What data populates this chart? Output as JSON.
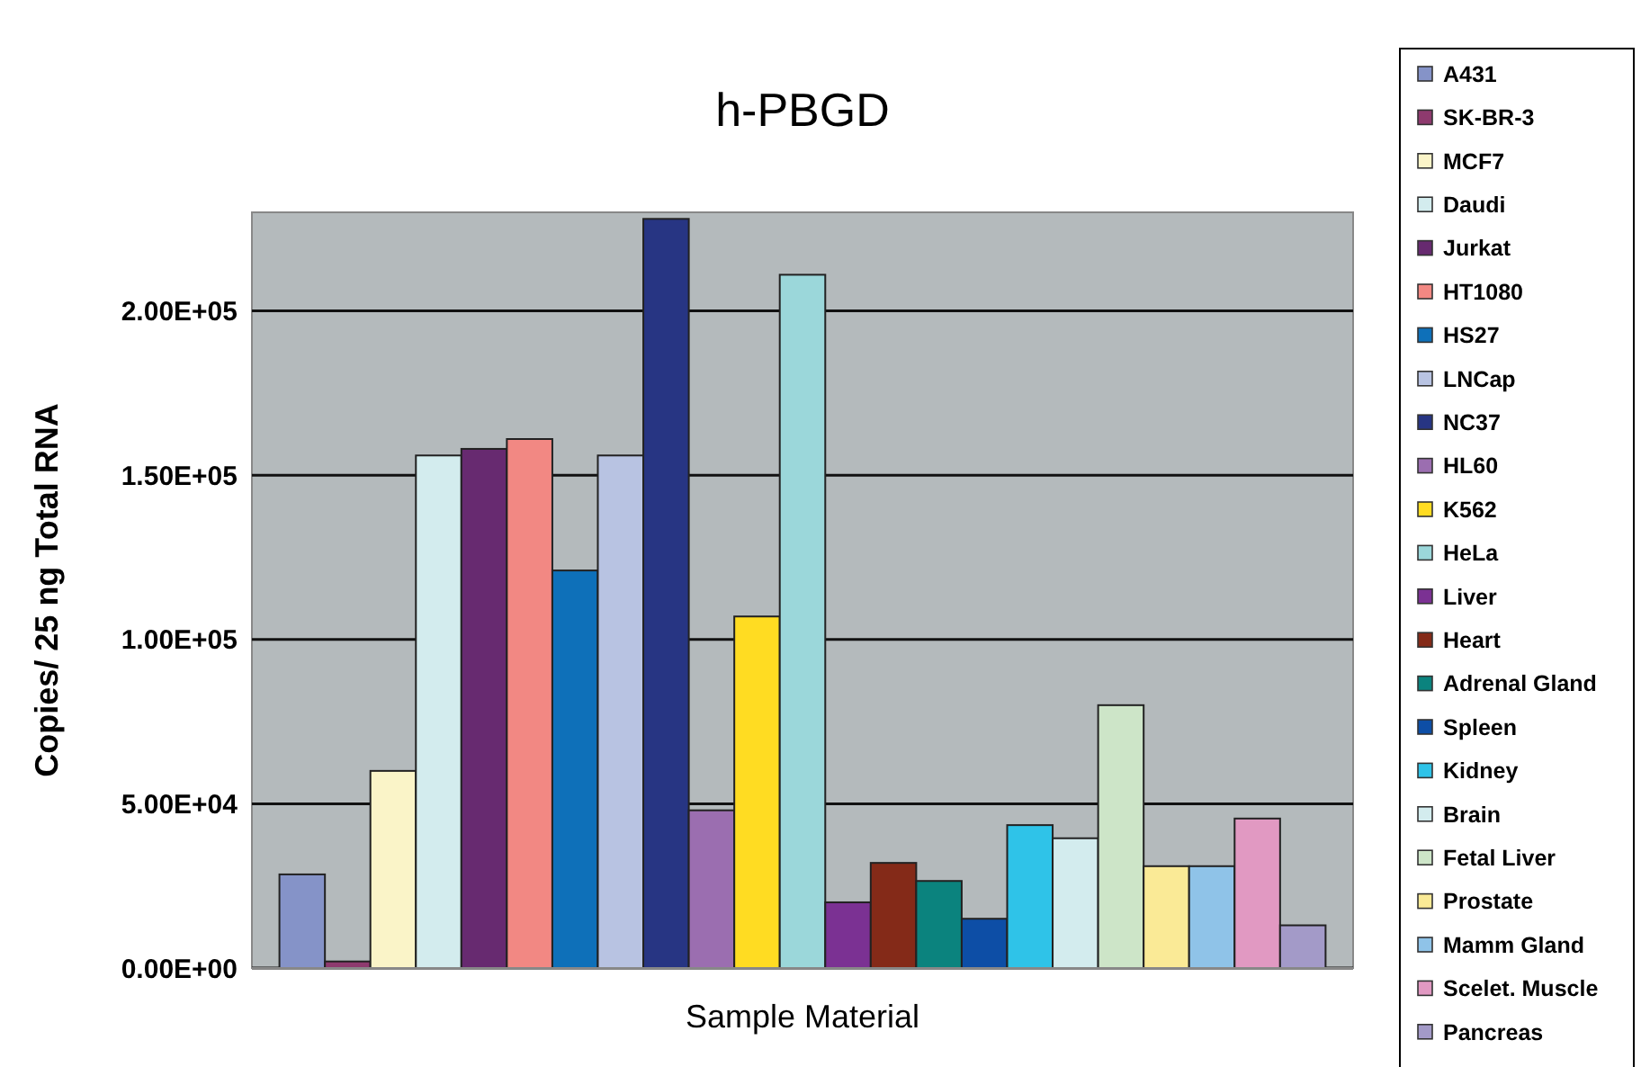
{
  "chart_data": {
    "type": "bar",
    "title": "h-PBGD",
    "xlabel": "Sample Material",
    "ylabel": "Copies/ 25 ng Total RNA",
    "categories": [
      null
    ],
    "series": [
      {
        "name": "A431",
        "color": "#8593c8",
        "values": [
          28500
        ]
      },
      {
        "name": "SK-BR-3",
        "color": "#8e3a6e",
        "values": [
          2000
        ]
      },
      {
        "name": "MCF7",
        "color": "#faf4c8",
        "values": [
          60000
        ]
      },
      {
        "name": "Daudi",
        "color": "#d3ecee",
        "values": [
          156000
        ]
      },
      {
        "name": "Jurkat",
        "color": "#672a70",
        "values": [
          158000
        ]
      },
      {
        "name": "HT1080",
        "color": "#f28883",
        "values": [
          161000
        ]
      },
      {
        "name": "HS27",
        "color": "#0e70b9",
        "values": [
          121000
        ]
      },
      {
        "name": "LNCap",
        "color": "#b8c3e2",
        "values": [
          156000
        ]
      },
      {
        "name": "NC37",
        "color": "#273583",
        "values": [
          228000
        ]
      },
      {
        "name": "HL60",
        "color": "#9b6eb0",
        "values": [
          48000
        ]
      },
      {
        "name": "K562",
        "color": "#ffdc22",
        "values": [
          107000
        ]
      },
      {
        "name": "HeLa",
        "color": "#9bd7da",
        "values": [
          211000
        ]
      },
      {
        "name": "Liver",
        "color": "#7b3193",
        "values": [
          20000
        ]
      },
      {
        "name": "Heart",
        "color": "#842a18",
        "values": [
          32000
        ]
      },
      {
        "name": "Adrenal Gland",
        "color": "#0b837e",
        "values": [
          26500
        ]
      },
      {
        "name": "Spleen",
        "color": "#0d4ea6",
        "values": [
          15000
        ]
      },
      {
        "name": "Kidney",
        "color": "#2fc3e8",
        "values": [
          43500
        ]
      },
      {
        "name": "Brain",
        "color": "#d3ecee",
        "values": [
          39500
        ]
      },
      {
        "name": "Fetal Liver",
        "color": "#cde5c8",
        "values": [
          80000
        ]
      },
      {
        "name": "Prostate",
        "color": "#faea96",
        "values": [
          31000
        ]
      },
      {
        "name": "Mamm Gland",
        "color": "#8fc3e8",
        "values": [
          31000
        ]
      },
      {
        "name": "Scelet. Muscle",
        "color": "#e199c2",
        "values": [
          45500
        ]
      },
      {
        "name": "Pancreas",
        "color": "#a39ac8",
        "values": [
          13000
        ]
      }
    ],
    "ylim": [
      0,
      230000
    ],
    "yticks": [
      {
        "value": 0,
        "label": "0.00E+00"
      },
      {
        "value": 50000,
        "label": "5.00E+04"
      },
      {
        "value": 100000,
        "label": "1.00E+05"
      },
      {
        "value": 150000,
        "label": "1.50E+05"
      },
      {
        "value": 200000,
        "label": "2.00E+05"
      }
    ],
    "grid": "y",
    "legend": "right"
  }
}
